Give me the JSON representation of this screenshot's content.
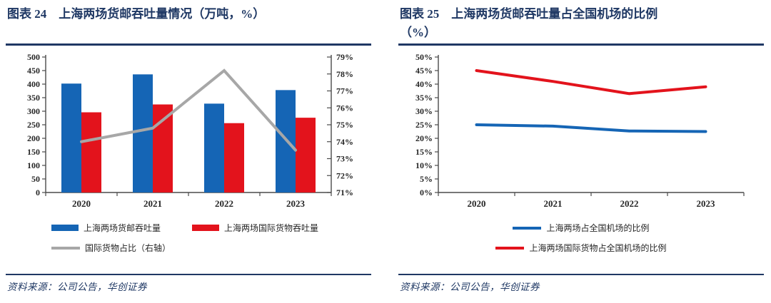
{
  "figures": [
    {
      "title1": "图表 24　上海两场货邮吞吐量情况（万吨，%）",
      "title2": "",
      "source": "资料来源：公司公告，华创证券"
    },
    {
      "title1": "图表 25　上海两场货邮吞吐量占全国机场的比例",
      "title2": "（%）",
      "source": "资料来源：公司公告，华创证券"
    }
  ],
  "colors": {
    "navy_accent": "#1f3864",
    "series_blue": "#1565b5",
    "series_red": "#e3131c",
    "series_gray": "#a7a7a7",
    "axis": "#4a4a4a",
    "tick_text": "#262626"
  },
  "chart_data": [
    {
      "type": "bar",
      "title": "上海两场货邮吞吐量情况（万吨，%）",
      "categories": [
        "2020",
        "2021",
        "2022",
        "2023"
      ],
      "series": [
        {
          "name": "上海两场货邮吞吐量",
          "kind": "bar",
          "axis": "left",
          "color": "#1565b5",
          "values": [
            402,
            436,
            328,
            378
          ]
        },
        {
          "name": "上海两场国际货物吞吐量",
          "kind": "bar",
          "axis": "left",
          "color": "#e3131c",
          "values": [
            296,
            325,
            256,
            276
          ]
        },
        {
          "name": "国际货物占比（右轴）",
          "kind": "line",
          "axis": "right",
          "color": "#a7a7a7",
          "values": [
            74.0,
            74.8,
            78.2,
            73.5
          ]
        }
      ],
      "y_left": {
        "min": 0,
        "max": 500,
        "step": 50,
        "suffix": ""
      },
      "y_right": {
        "min": 71,
        "max": 79,
        "step": 1,
        "suffix": "%"
      },
      "grid": false,
      "legend_position": "bottom",
      "legend_layout": "two-col"
    },
    {
      "type": "line",
      "title": "上海两场货邮吞吐量占全国机场的比例（%）",
      "categories": [
        "2020",
        "2021",
        "2022",
        "2023"
      ],
      "series": [
        {
          "name": "上海两场占全国机场的比例",
          "kind": "line",
          "axis": "left",
          "color": "#1565b5",
          "values": [
            25.0,
            24.5,
            22.7,
            22.5
          ]
        },
        {
          "name": "上海两场国际货物占全国机场的比例",
          "kind": "line",
          "axis": "left",
          "color": "#e3131c",
          "values": [
            45.0,
            41.0,
            36.5,
            39.0
          ]
        }
      ],
      "y_left": {
        "min": 0,
        "max": 50,
        "step": 5,
        "suffix": "%"
      },
      "grid": false,
      "legend_position": "bottom",
      "legend_layout": "centered"
    }
  ]
}
